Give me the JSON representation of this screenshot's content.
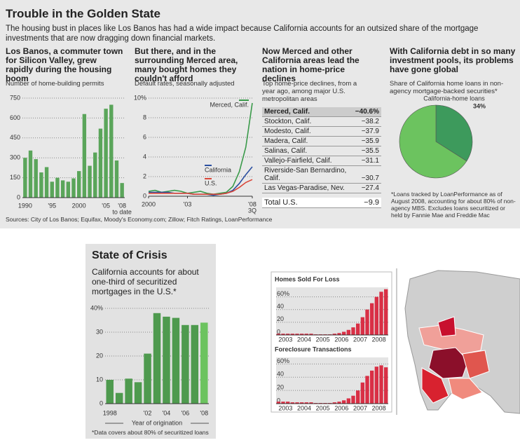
{
  "header": {
    "title": "Trouble in the Golden State",
    "subtitle": "The housing bust in places like Los Banos has had a wide impact because California accounts for an outsized share of the mortgage investments that are now dragging down financial markets."
  },
  "table": {
    "title": "Now Merced and other California areas lead the nation in home-price declines",
    "subtitle": "Top home-price declines, from a year ago, among major U.S. metropolitan areas",
    "rows": [
      [
        "Merced, Calif.",
        "−40.6%"
      ],
      [
        "Stockton, Calif.",
        "−38.2"
      ],
      [
        "Modesto, Calif.",
        "−37.9"
      ],
      [
        "Madera, Calif.",
        "−35.9"
      ],
      [
        "Salinas, Calif.",
        "−35.5"
      ],
      [
        "Vallejo-Fairfield, Calif.",
        "−31.1"
      ],
      [
        "Riverside-San Bernardino, Calif.",
        "−30.7"
      ],
      [
        "Las Vegas-Paradise, Nev.",
        "−27.4"
      ]
    ],
    "total": [
      "Total U.S.",
      "−9.9"
    ]
  },
  "sources": "Sources: City of Los Banos; Equifax, Moody's Economy.com; Zillow; Fitch Ratings, LoanPerformance",
  "chart_data": [
    {
      "type": "bar",
      "title": "Los Banos, a commuter town for Silicon Valley, grew rapidly during the housing boom",
      "subtitle": "Number of home-building permits",
      "categories": [
        "1990",
        null,
        null,
        null,
        null,
        "'95",
        null,
        null,
        null,
        null,
        "2000",
        null,
        null,
        null,
        null,
        "'05",
        null,
        null,
        "'08"
      ],
      "x_tick_note": "to date",
      "values": [
        300,
        355,
        290,
        190,
        230,
        120,
        150,
        130,
        120,
        145,
        200,
        630,
        240,
        340,
        520,
        670,
        700,
        280,
        110
      ],
      "color": "#5aa55a",
      "ylim": [
        0,
        750
      ],
      "yticks": [
        0,
        150,
        300,
        450,
        600,
        750
      ],
      "grid": true
    },
    {
      "type": "line",
      "title": "But there, and in the surrounding Merced area, many bought homes they couldn't afford",
      "subtitle": "Default rates, seasonally adjusted",
      "x": [
        2000,
        2000.5,
        2001,
        2001.5,
        2002,
        2002.5,
        2003,
        2003.5,
        2004,
        2004.5,
        2005,
        2005.5,
        2006,
        2006.5,
        2007,
        2007.5,
        2008
      ],
      "xlim": [
        2000,
        2008
      ],
      "xticks": [
        2000,
        {
          "value": 2003,
          "label": "'03"
        },
        {
          "value": 2008,
          "label": "'08"
        }
      ],
      "x_tick_note": "3Q",
      "ylim": [
        0,
        10
      ],
      "yticks": [
        0,
        2,
        4,
        6,
        8,
        {
          "value": 10,
          "label": "10%"
        }
      ],
      "grid": true,
      "series": [
        {
          "name": "Merced, Calif.",
          "color": "#3a9a4a",
          "values": [
            0.5,
            0.6,
            0.4,
            0.5,
            0.6,
            0.5,
            0.3,
            0.4,
            0.5,
            0.3,
            0.2,
            0.3,
            0.4,
            1.0,
            2.5,
            5.0,
            9.5
          ]
        },
        {
          "name": "California",
          "color": "#2b4fa0",
          "values": [
            0.4,
            0.4,
            0.4,
            0.4,
            0.3,
            0.3,
            0.3,
            0.2,
            0.2,
            0.2,
            0.1,
            0.2,
            0.3,
            0.6,
            1.3,
            2.2,
            3.0
          ]
        },
        {
          "name": "U.S.",
          "color": "#d9473a",
          "values": [
            0.3,
            0.3,
            0.3,
            0.3,
            0.3,
            0.3,
            0.3,
            0.2,
            0.2,
            0.2,
            0.2,
            0.2,
            0.3,
            0.5,
            0.9,
            1.4,
            1.7
          ]
        }
      ]
    },
    {
      "type": "pie",
      "title": "With California debt in so many investment pools, its problems have gone global",
      "subtitle": "Share of California home loans in non-agency mortgage-backed securities*",
      "categories": [
        "California-home loans",
        null
      ],
      "values": [
        34,
        66
      ],
      "value_labels": [
        "34%",
        null
      ],
      "colors": [
        "#3d9a5c",
        "#6cc35f"
      ],
      "note": "*Loans tracked by LoanPerformance as of August 2008, accounting for about 80% of non-agency MBS. Excludes loans securitized or held by Fannie Mae and Freddie Mac"
    },
    {
      "type": "bar",
      "title": "State of Crisis",
      "subtitle": "California accounts for about one-third of securitized mortgages in the U.S.*",
      "categories": [
        "1998",
        null,
        null,
        null,
        "'02",
        null,
        "'04",
        null,
        "'06",
        null,
        "'08"
      ],
      "values": [
        10,
        4.5,
        10.5,
        9,
        21,
        38,
        36.5,
        36,
        33,
        33,
        34
      ],
      "colors": [
        "#4e9a4e",
        "#4e9a4e",
        "#4e9a4e",
        "#4e9a4e",
        "#4e9a4e",
        "#4e9a4e",
        "#4e9a4e",
        "#4e9a4e",
        "#4e9a4e",
        "#4e9a4e",
        "#6cc35f"
      ],
      "ylim": [
        0,
        40
      ],
      "yticks": [
        0,
        10,
        20,
        30,
        {
          "value": 40,
          "label": "40%"
        }
      ],
      "grid": true,
      "x_label": "Year of origination",
      "note": "*Data covers about 80% of securitized loans"
    },
    {
      "type": "bar",
      "title": "Homes Sold For Loss",
      "categories": [
        null,
        "2003",
        null,
        null,
        null,
        "2004",
        null,
        null,
        null,
        "2005",
        null,
        null,
        null,
        "2006",
        null,
        null,
        null,
        "2007",
        null,
        null,
        null,
        "2008",
        null,
        null
      ],
      "values": [
        2,
        2,
        2,
        2,
        2,
        2,
        2,
        2,
        1,
        1,
        1,
        1,
        2,
        3,
        5,
        8,
        12,
        18,
        28,
        40,
        50,
        60,
        68,
        72
      ],
      "color": "#d92f45",
      "ylim": [
        0,
        75
      ],
      "yticks": [
        0,
        20,
        40,
        {
          "value": 60,
          "label": "60%"
        }
      ],
      "grid": true
    },
    {
      "type": "bar",
      "title": "Foreclosure Transactions",
      "categories": [
        null,
        "2003",
        null,
        null,
        null,
        "2004",
        null,
        null,
        null,
        "2005",
        null,
        null,
        null,
        "2006",
        null,
        null,
        null,
        "2007",
        null,
        null,
        null,
        "2008",
        null,
        null
      ],
      "values": [
        3,
        3,
        3,
        2,
        2,
        2,
        2,
        2,
        1,
        1,
        1,
        1,
        2,
        3,
        5,
        8,
        12,
        20,
        32,
        42,
        50,
        56,
        58,
        55
      ],
      "color": "#d92f45",
      "ylim": [
        0,
        70
      ],
      "yticks": [
        0,
        20,
        40,
        {
          "value": 60,
          "label": "60%"
        }
      ],
      "grid": true
    }
  ]
}
